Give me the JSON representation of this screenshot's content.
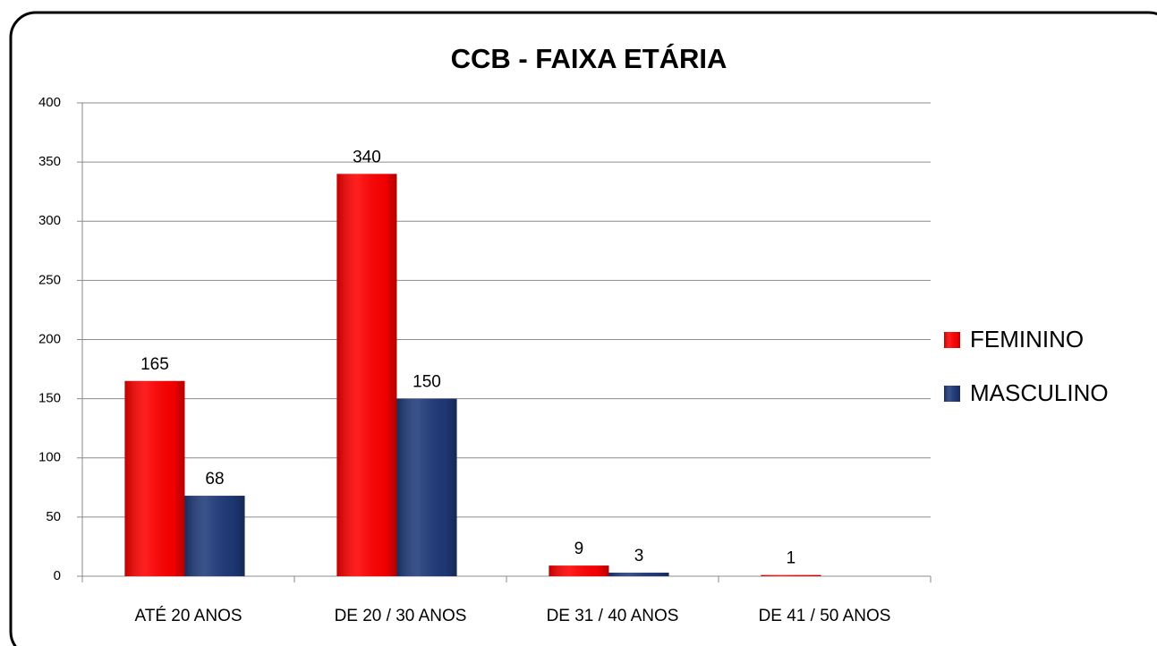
{
  "chart_data": {
    "type": "bar",
    "title": "CCB - FAIXA ETÁRIA",
    "categories": [
      "ATÉ 20 ANOS",
      "DE 20 / 30 ANOS",
      "DE 31 / 40 ANOS",
      "DE 41 / 50 ANOS"
    ],
    "series": [
      {
        "name": "FEMININO",
        "color": "#ff0000",
        "values": [
          165,
          340,
          9,
          1
        ]
      },
      {
        "name": "MASCULINO",
        "color": "#1f3a7a",
        "values": [
          68,
          150,
          3,
          null
        ]
      }
    ],
    "ylim": [
      0,
      400
    ],
    "yticks": [
      0,
      50,
      100,
      150,
      200,
      250,
      300,
      350,
      400
    ],
    "grid": true,
    "legend": "right"
  }
}
